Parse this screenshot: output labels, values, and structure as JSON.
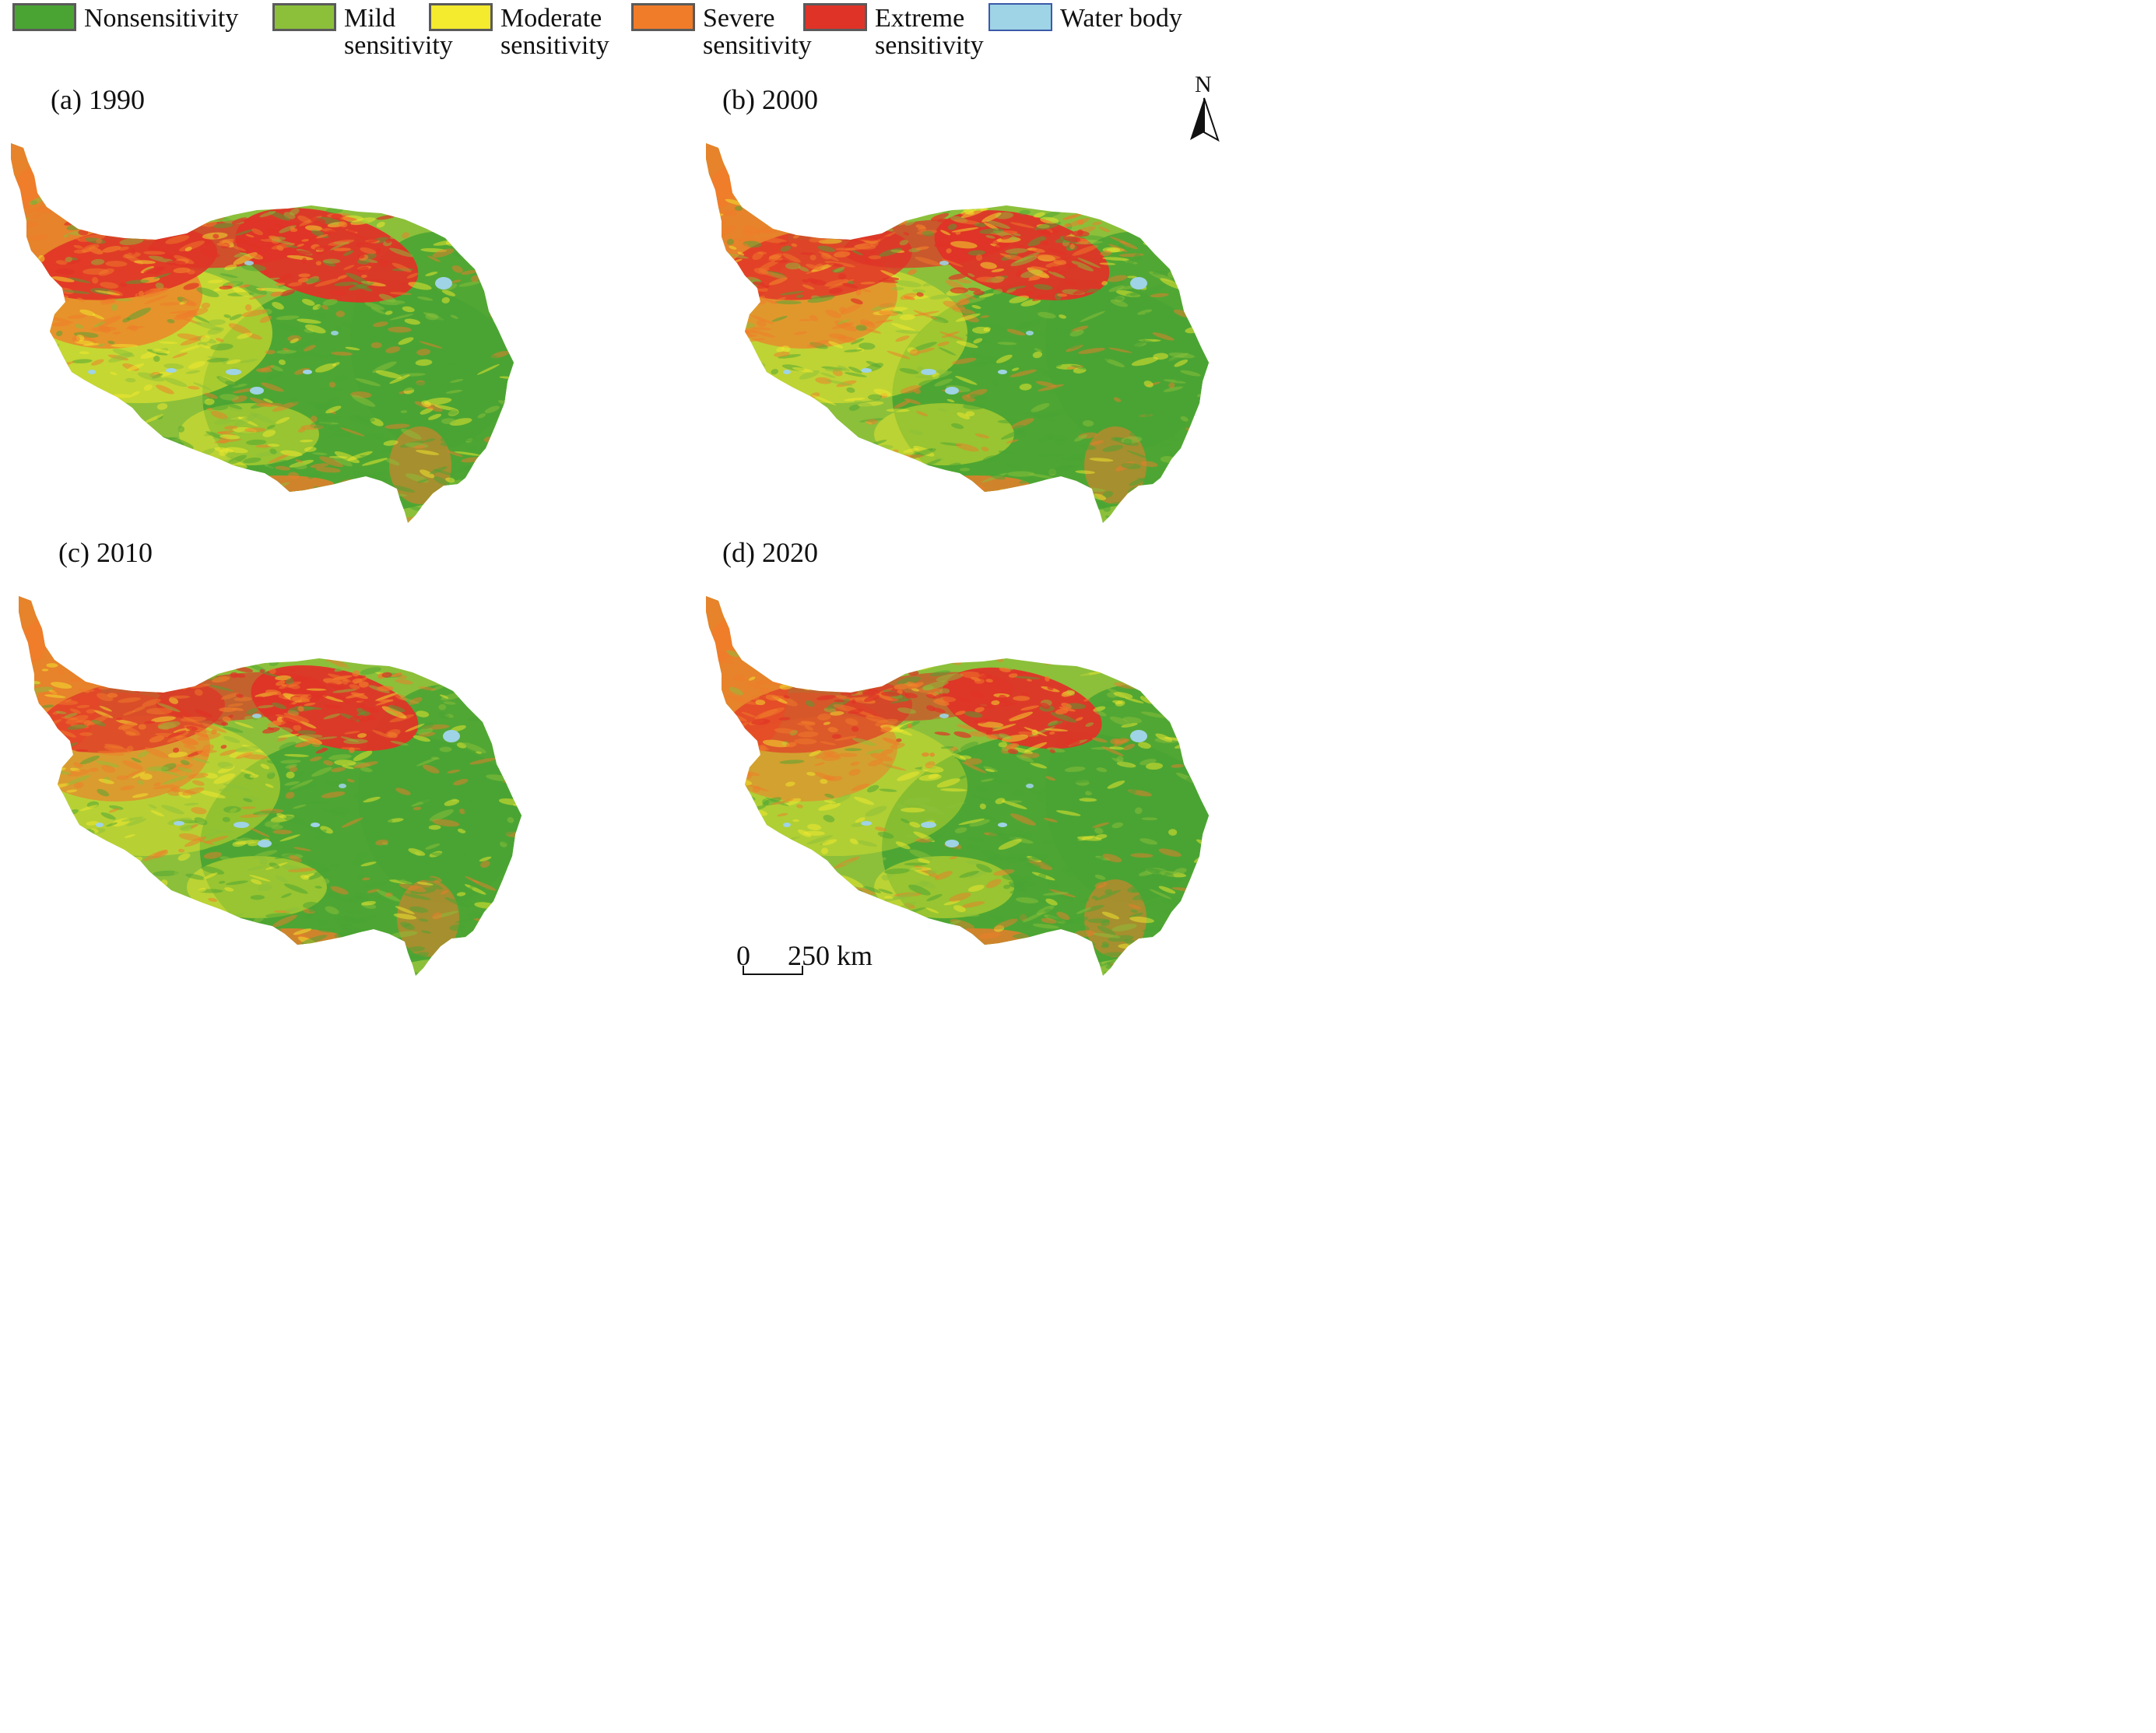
{
  "legend": {
    "items": [
      {
        "id": "non",
        "lines": [
          "Nonsensitivity"
        ],
        "color": "#4aa433",
        "icon": "swatch-square"
      },
      {
        "id": "mild",
        "lines": [
          "Mild",
          "sensitivity"
        ],
        "color": "#8cc03a",
        "icon": "swatch-square"
      },
      {
        "id": "moderate",
        "lines": [
          "Moderate",
          "sensitivity"
        ],
        "color": "#f4ea2e",
        "icon": "swatch-square"
      },
      {
        "id": "severe",
        "lines": [
          "Severe",
          "sensitivity"
        ],
        "color": "#f07c2a",
        "icon": "swatch-square"
      },
      {
        "id": "extreme",
        "lines": [
          "Extreme",
          "sensitivity"
        ],
        "color": "#e03327",
        "icon": "swatch-square"
      },
      {
        "id": "water",
        "lines": [
          "Water body"
        ],
        "color": "#9fd3e6",
        "icon": "swatch-square"
      }
    ]
  },
  "panels": [
    {
      "id": "a",
      "title": "(a) 1990",
      "year": 1990
    },
    {
      "id": "b",
      "title": "(b) 2000",
      "year": 2000
    },
    {
      "id": "c",
      "title": "(c) 2010",
      "year": 2010
    },
    {
      "id": "d",
      "title": "(d) 2020",
      "year": 2020
    }
  ],
  "north_arrow": {
    "label": "N",
    "icon": "north-arrow-icon"
  },
  "scale_bar": {
    "start": "0",
    "end": "250 km"
  },
  "colors": {
    "non": "#4aa433",
    "mild": "#8cc03a",
    "moderate": "#f4ea2e",
    "severe": "#f07c2a",
    "extreme": "#e03327",
    "water": "#9fd3e6"
  }
}
